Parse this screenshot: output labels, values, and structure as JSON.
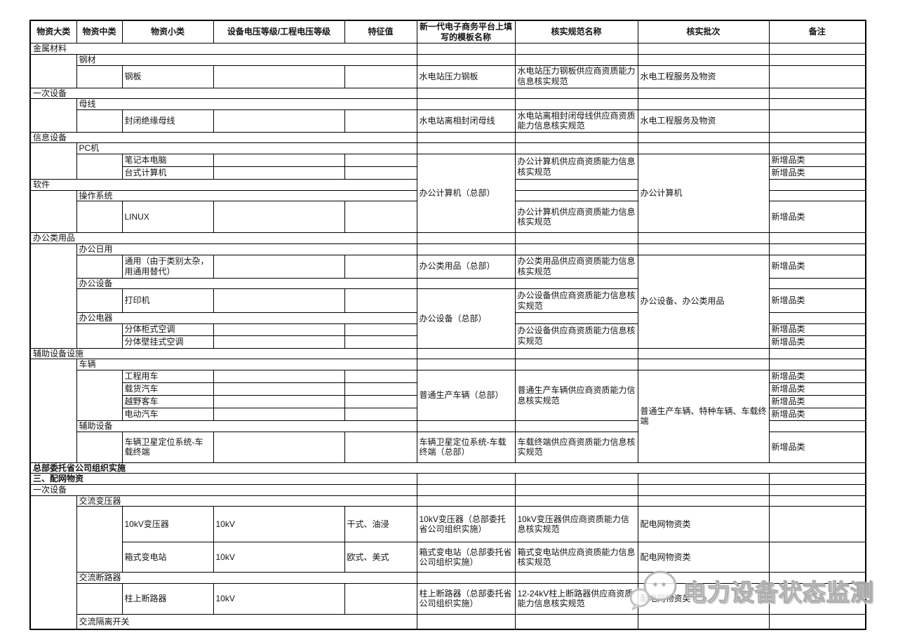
{
  "watermark": {
    "text": "电力设备状态监测",
    "icon": "wechat-logo-icon"
  },
  "colors": {
    "border": "#000000",
    "watermark_gray": "#a8a8a8",
    "background": "#ffffff"
  },
  "table": {
    "rows": [
      {
        "cells": [
          {
            "t": "物资大类",
            "b": true
          },
          {
            "t": "物资中类",
            "b": true
          },
          {
            "t": "物资小类",
            "b": true
          },
          {
            "t": "设备电压等级/工程电压等级",
            "b": true
          },
          {
            "t": "特征值",
            "b": true
          },
          {
            "t": "新一代电子商务平台上填写的模板名称",
            "b": true
          },
          {
            "t": "核实规范名称",
            "b": true
          },
          {
            "t": "核实批次",
            "b": true
          },
          {
            "t": "备注",
            "b": true
          }
        ]
      },
      {
        "cells": [
          {
            "t": "金属材料",
            "cs": 5
          },
          {
            "t": ""
          },
          {
            "t": ""
          },
          {
            "t": ""
          },
          {
            "t": ""
          }
        ]
      },
      {
        "cells": [
          {
            "t": "",
            "rs": 2
          },
          {
            "t": "钢材",
            "cs": 4
          },
          {
            "t": ""
          },
          {
            "t": ""
          },
          {
            "t": ""
          },
          {
            "t": ""
          }
        ]
      },
      {
        "cells": [
          {
            "t": ""
          },
          {
            "t": "钢板"
          },
          {
            "t": ""
          },
          {
            "t": ""
          },
          {
            "t": "水电站压力钢板"
          },
          {
            "t": "水电站压力钢板供应商资质能力信息核实规范"
          },
          {
            "t": "水电工程服务及物资"
          },
          {
            "t": ""
          }
        ]
      },
      {
        "cells": [
          {
            "t": "一次设备",
            "cs": 5
          },
          {
            "t": ""
          },
          {
            "t": ""
          },
          {
            "t": ""
          },
          {
            "t": ""
          }
        ]
      },
      {
        "cells": [
          {
            "t": "",
            "rs": 2
          },
          {
            "t": "母线",
            "cs": 4
          },
          {
            "t": ""
          },
          {
            "t": ""
          },
          {
            "t": ""
          },
          {
            "t": ""
          }
        ]
      },
      {
        "cells": [
          {
            "t": ""
          },
          {
            "t": "封闭绝缘母线"
          },
          {
            "t": ""
          },
          {
            "t": ""
          },
          {
            "t": "水电站离相封闭母线"
          },
          {
            "t": "水电站离相封闭母线供应商资质能力信息核实规范"
          },
          {
            "t": "水电工程服务及物资"
          },
          {
            "t": ""
          }
        ]
      },
      {
        "cells": [
          {
            "t": "信息设备",
            "cs": 5
          },
          {
            "t": ""
          },
          {
            "t": ""
          },
          {
            "t": ""
          },
          {
            "t": ""
          }
        ]
      },
      {
        "cells": [
          {
            "t": "",
            "rs": 3
          },
          {
            "t": "PC机",
            "cs": 4
          },
          {
            "t": ""
          },
          {
            "t": ""
          },
          {
            "t": ""
          },
          {
            "t": ""
          }
        ]
      },
      {
        "cells": [
          {
            "t": "",
            "rs": 2
          },
          {
            "t": "笔记本电脑"
          },
          {
            "t": ""
          },
          {
            "t": ""
          },
          {
            "t": "办公计算机（总部）",
            "rs": 5
          },
          {
            "t": "办公计算机供应商资质能力信息核实规范",
            "rs": 2
          },
          {
            "t": "办公计算机",
            "rs": 5
          },
          {
            "t": "新增品类"
          }
        ]
      },
      {
        "cells": [
          {
            "t": "台式计算机"
          },
          {
            "t": ""
          },
          {
            "t": ""
          },
          {
            "t": "新增品类"
          }
        ]
      },
      {
        "cells": [
          {
            "t": "软件",
            "cs": 5
          },
          {
            "t": ""
          },
          {
            "t": ""
          }
        ]
      },
      {
        "cells": [
          {
            "t": "",
            "rs": 2
          },
          {
            "t": "操作系统",
            "cs": 4
          },
          {
            "t": ""
          },
          {
            "t": ""
          }
        ]
      },
      {
        "cells": [
          {
            "t": ""
          },
          {
            "t": "LINUX"
          },
          {
            "t": ""
          },
          {
            "t": ""
          },
          {
            "t": "办公计算机供应商资质能力信息核实规范"
          },
          {
            "t": "新增品类"
          }
        ]
      },
      {
        "cells": [
          {
            "t": "办公类用品",
            "cs": 5
          },
          {
            "t": ""
          },
          {
            "t": ""
          },
          {
            "t": ""
          },
          {
            "t": ""
          }
        ]
      },
      {
        "cells": [
          {
            "t": "",
            "rs": 7
          },
          {
            "t": "办公日用",
            "cs": 4
          },
          {
            "t": ""
          },
          {
            "t": ""
          },
          {
            "t": ""
          },
          {
            "t": ""
          }
        ]
      },
      {
        "cells": [
          {
            "t": ""
          },
          {
            "t": "通用（由于类别太杂，用通用替代）"
          },
          {
            "t": ""
          },
          {
            "t": ""
          },
          {
            "t": "办公类用品（总部）"
          },
          {
            "t": "办公类用品供应商资质能力信息核实规范"
          },
          {
            "t": "办公设备、办公类用品",
            "rs": 6
          },
          {
            "t": "新增品类"
          }
        ]
      },
      {
        "cells": [
          {
            "t": "办公设备",
            "cs": 4
          },
          {
            "t": ""
          },
          {
            "t": ""
          },
          {
            "t": ""
          }
        ]
      },
      {
        "cells": [
          {
            "t": ""
          },
          {
            "t": "打印机"
          },
          {
            "t": ""
          },
          {
            "t": ""
          },
          {
            "t": "办公设备（总部）",
            "rs": 4
          },
          {
            "t": "办公设备供应商资质能力信息核实规范"
          },
          {
            "t": "新增品类"
          }
        ]
      },
      {
        "cells": [
          {
            "t": "办公电器",
            "cs": 4
          },
          {
            "t": ""
          },
          {
            "t": ""
          }
        ]
      },
      {
        "cells": [
          {
            "t": "",
            "rs": 2
          },
          {
            "t": "分体柜式空调"
          },
          {
            "t": ""
          },
          {
            "t": ""
          },
          {
            "t": "办公设备供应商资质能力信息核实规范",
            "rs": 2
          },
          {
            "t": "新增品类"
          }
        ]
      },
      {
        "cells": [
          {
            "t": "分体壁挂式空调"
          },
          {
            "t": ""
          },
          {
            "t": ""
          },
          {
            "t": "新增品类"
          }
        ]
      },
      {
        "cells": [
          {
            "t": "辅助设备设施",
            "cs": 5
          },
          {
            "t": ""
          },
          {
            "t": ""
          },
          {
            "t": ""
          },
          {
            "t": ""
          }
        ]
      },
      {
        "cells": [
          {
            "t": "",
            "rs": 7
          },
          {
            "t": "车辆",
            "cs": 4
          },
          {
            "t": ""
          },
          {
            "t": ""
          },
          {
            "t": ""
          },
          {
            "t": ""
          }
        ]
      },
      {
        "cells": [
          {
            "t": "",
            "rs": 4
          },
          {
            "t": "工程用车"
          },
          {
            "t": ""
          },
          {
            "t": ""
          },
          {
            "t": "普通生产车辆（总部）",
            "rs": 4
          },
          {
            "t": "普通生产车辆供应商资质能力信息核实规范",
            "rs": 4
          },
          {
            "t": "普通生产车辆、特种车辆、车载终端",
            "rs": 6
          },
          {
            "t": "新增品类"
          }
        ]
      },
      {
        "cells": [
          {
            "t": "载货汽车"
          },
          {
            "t": ""
          },
          {
            "t": ""
          },
          {
            "t": "新增品类"
          }
        ]
      },
      {
        "cells": [
          {
            "t": "越野客车"
          },
          {
            "t": ""
          },
          {
            "t": ""
          },
          {
            "t": "新增品类"
          }
        ]
      },
      {
        "cells": [
          {
            "t": "电动汽车"
          },
          {
            "t": ""
          },
          {
            "t": ""
          },
          {
            "t": "新增品类"
          }
        ]
      },
      {
        "cells": [
          {
            "t": "辅助设备",
            "cs": 4
          },
          {
            "t": ""
          },
          {
            "t": ""
          },
          {
            "t": ""
          }
        ]
      },
      {
        "cells": [
          {
            "t": ""
          },
          {
            "t": "车辆卫星定位系统-车载终端"
          },
          {
            "t": ""
          },
          {
            "t": ""
          },
          {
            "t": "车辆卫星定位系统-车载终端（总部）"
          },
          {
            "t": "车载终端供应商资质能力信息核实规范"
          },
          {
            "t": "新增品类"
          }
        ]
      },
      {
        "cells": [
          {
            "t": "总部委托省公司组织实施",
            "cs": 9,
            "b": true
          }
        ]
      },
      {
        "cells": [
          {
            "t": "三、配网物资",
            "cs": 5,
            "b": true
          },
          {
            "t": ""
          },
          {
            "t": ""
          },
          {
            "t": ""
          },
          {
            "t": ""
          }
        ]
      },
      {
        "cells": [
          {
            "t": "一次设备",
            "cs": 5
          },
          {
            "t": ""
          },
          {
            "t": ""
          },
          {
            "t": ""
          },
          {
            "t": ""
          }
        ]
      },
      {
        "cells": [
          {
            "t": "",
            "rs": 6
          },
          {
            "t": "交流变压器",
            "cs": 4
          },
          {
            "t": ""
          },
          {
            "t": ""
          },
          {
            "t": ""
          },
          {
            "t": ""
          }
        ]
      },
      {
        "cells": [
          {
            "t": "",
            "rs": 2
          },
          {
            "t": "10kV变压器"
          },
          {
            "t": "10kV"
          },
          {
            "t": "干式、油浸"
          },
          {
            "t": "10kV变压器（总部委托省公司组织实施）"
          },
          {
            "t": "10kV变压器供应商资质能力信息核实规范"
          },
          {
            "t": "配电网物资类"
          },
          {
            "t": ""
          }
        ]
      },
      {
        "cells": [
          {
            "t": "箱式变电站"
          },
          {
            "t": "10kV"
          },
          {
            "t": "欧式、美式"
          },
          {
            "t": "箱式变电站（总部委托省公司组织实施）"
          },
          {
            "t": "箱式变电站供应商资质能力信息核实规范"
          },
          {
            "t": "配电网物资类"
          },
          {
            "t": ""
          }
        ]
      },
      {
        "cells": [
          {
            "t": "交流断路器",
            "cs": 4
          },
          {
            "t": ""
          },
          {
            "t": ""
          },
          {
            "t": ""
          },
          {
            "t": ""
          }
        ]
      },
      {
        "cells": [
          {
            "t": ""
          },
          {
            "t": "柱上断路器"
          },
          {
            "t": "10kV"
          },
          {
            "t": ""
          },
          {
            "t": "柱上断路器（总部委托省公司组织实施）"
          },
          {
            "t": "12-24kV柱上断路器供应商资质能力信息核实规范"
          },
          {
            "t": "配电网物资类"
          },
          {
            "t": ""
          }
        ]
      },
      {
        "cells": [
          {
            "t": "交流隔离开关",
            "cs": 4
          },
          {
            "t": ""
          },
          {
            "t": ""
          },
          {
            "t": ""
          },
          {
            "t": ""
          }
        ]
      }
    ]
  }
}
